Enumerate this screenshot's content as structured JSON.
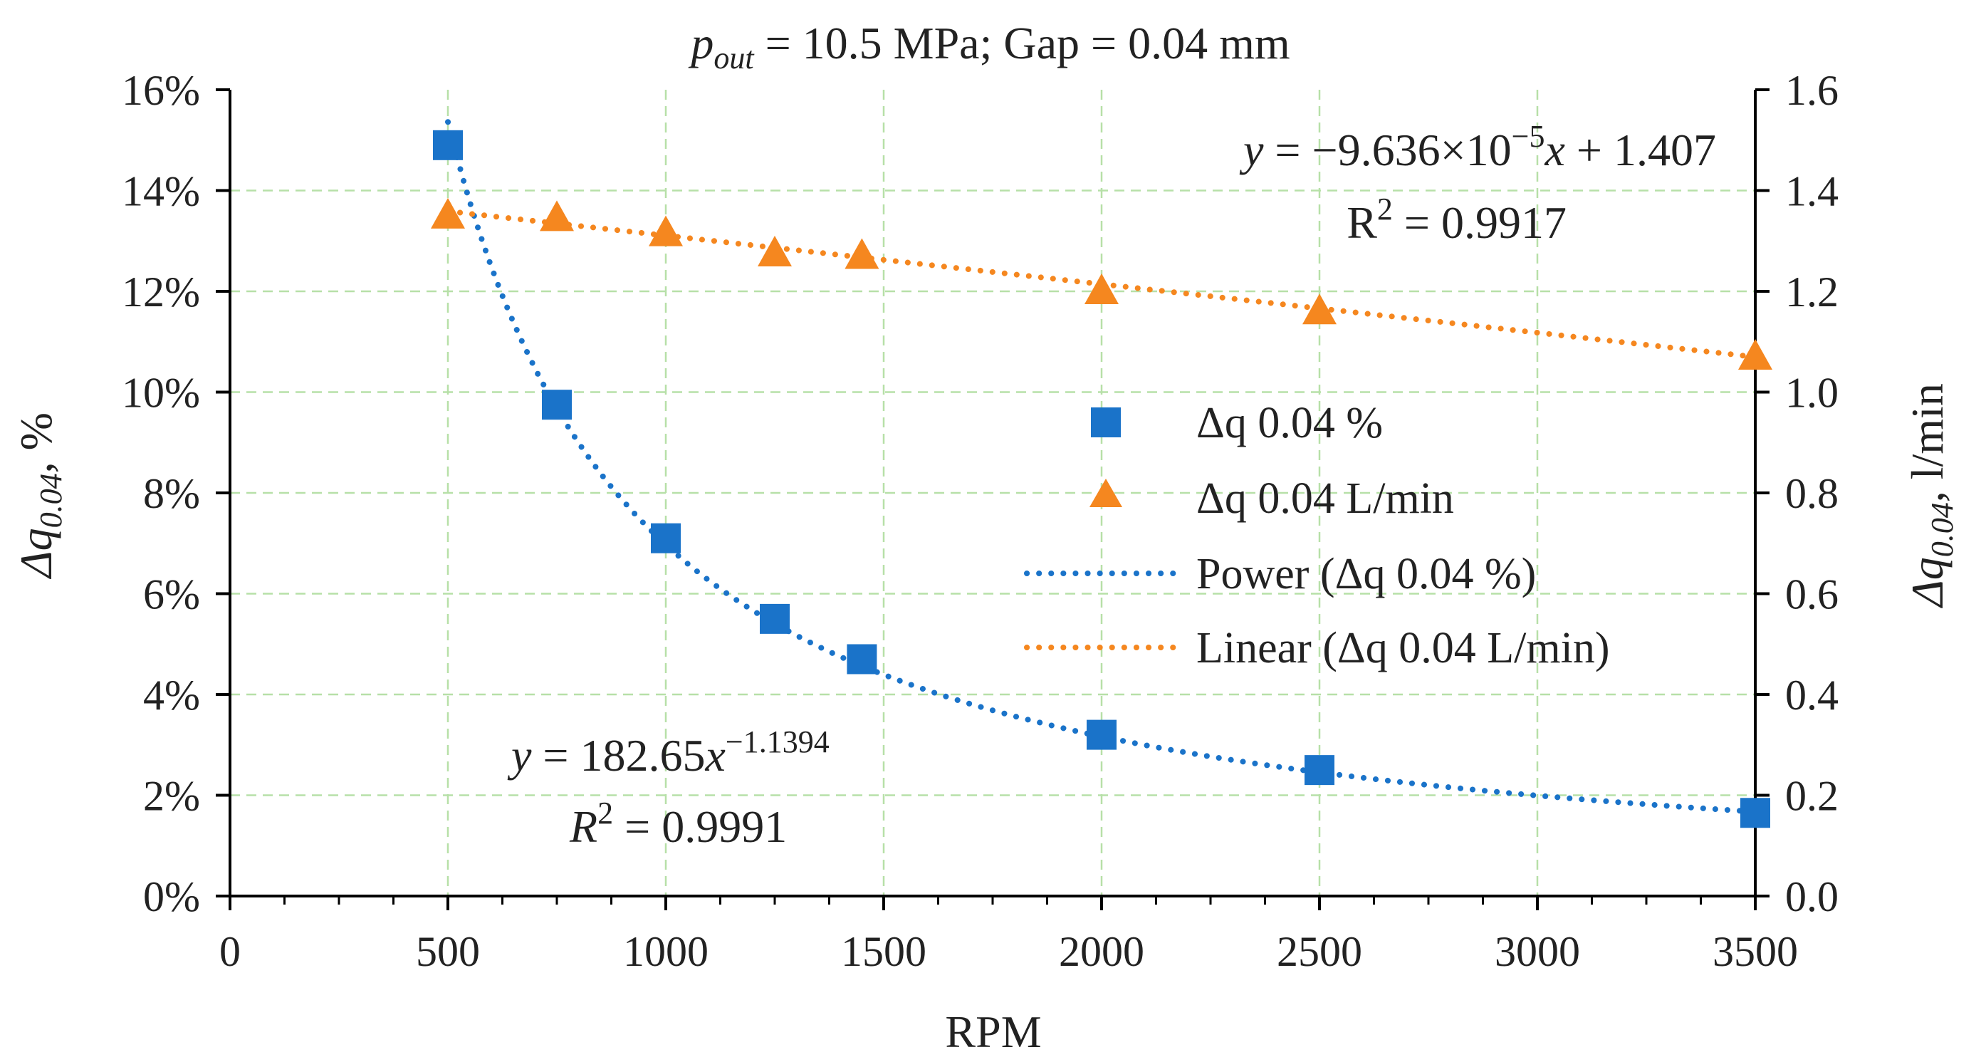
{
  "chart_data": {
    "type": "scatter",
    "title": {
      "p_symbol": "p",
      "p_subscript": "out",
      "rest": " = 10.5 MPa; Gap = 0.04 mm"
    },
    "xlabel": "RPM",
    "ylabel_left": {
      "prefix": "Δq",
      "subscript": "0.04",
      "suffix": ", %"
    },
    "ylabel_right": {
      "prefix": "Δq",
      "subscript": "0.04",
      "suffix": ", l/min"
    },
    "xlim": [
      0,
      3500
    ],
    "ylim_left": [
      0,
      16
    ],
    "ylim_right": [
      0,
      1.6
    ],
    "grid": true,
    "x_ticks": [
      "0",
      "500",
      "1000",
      "1500",
      "2000",
      "2500",
      "3000",
      "3500"
    ],
    "y_left_ticks": [
      "0%",
      "2%",
      "4%",
      "6%",
      "8%",
      "10%",
      "12%",
      "14%",
      "16%"
    ],
    "y_right_ticks": [
      "0.0",
      "0.2",
      "0.4",
      "0.6",
      "0.8",
      "1.0",
      "1.2",
      "1.4",
      "1.6"
    ],
    "series": [
      {
        "name": "Δq 0.04 %",
        "axis": "left",
        "marker": "square",
        "color": "#1a73c9",
        "x": [
          500,
          750,
          1000,
          1250,
          1450,
          2000,
          2500,
          3500
        ],
        "y": [
          14.9,
          9.75,
          7.1,
          5.5,
          4.7,
          3.2,
          2.5,
          1.65
        ]
      },
      {
        "name": "Δq 0.04 L/min",
        "axis": "right",
        "marker": "triangle",
        "color": "#f5871f",
        "x": [
          500,
          750,
          1000,
          1250,
          1450,
          2000,
          2500,
          3500
        ],
        "y": [
          1.35,
          1.345,
          1.315,
          1.275,
          1.27,
          1.2,
          1.16,
          1.07
        ]
      }
    ],
    "trendlines": [
      {
        "name": "Power (Δq 0.04 %)",
        "type": "power",
        "axis": "left",
        "coef": 182.65,
        "exponent": -1.1394,
        "x_range": [
          500,
          3500
        ],
        "color": "#1a73c9"
      },
      {
        "name": "Linear (Δq 0.04 L/min)",
        "type": "linear",
        "axis": "right",
        "slope": -9.636e-05,
        "intercept": 1.407,
        "x_range": [
          500,
          3500
        ],
        "color": "#f5871f"
      }
    ],
    "annotations": {
      "linear_eq": {
        "lhs": "y",
        "mid": " = −9.636×10",
        "exp": "−5",
        "var": "x",
        "tail": " + 1.407"
      },
      "linear_r2": {
        "label": "R",
        "sup": "2",
        "value": " = 0.9917"
      },
      "power_eq": {
        "lhs": "y",
        "mid": " = 182.65",
        "var": "x",
        "exp": "−1.1394"
      },
      "power_r2": {
        "label": "R",
        "sup": "2",
        "value": " = 0.9991"
      }
    },
    "legend_position": "center-right"
  }
}
